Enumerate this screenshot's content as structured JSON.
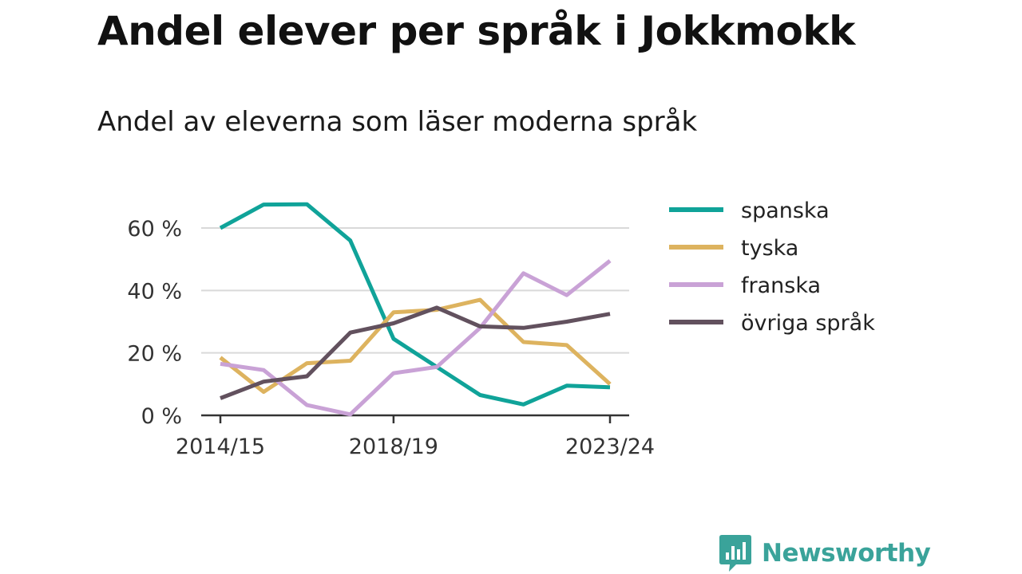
{
  "title": "Andel elever per språk i Jokkmokk",
  "subtitle": "Andel av eleverna som läser moderna språk",
  "brand": {
    "name": "Newsworthy",
    "color": "#3aa39a"
  },
  "chart_data": {
    "type": "line",
    "x_count": 10,
    "x_ticks": [
      {
        "index": 0,
        "label": "2014/15"
      },
      {
        "index": 4,
        "label": "2018/19"
      },
      {
        "index": 9,
        "label": "2023/24"
      }
    ],
    "ylim": [
      0,
      65
    ],
    "y_ticks": [
      {
        "value": 0,
        "label": "0 %"
      },
      {
        "value": 20,
        "label": "20 %"
      },
      {
        "value": 40,
        "label": "40 %"
      },
      {
        "value": 60,
        "label": "60 %"
      }
    ],
    "grid": true,
    "legend_position": "right",
    "series": [
      {
        "name": "spanska",
        "color": "#10a399",
        "values": [
          60,
          67.5,
          67.6,
          56,
          24.5,
          15.5,
          6.5,
          3.5,
          9.5,
          9
        ]
      },
      {
        "name": "tyska",
        "color": "#ddb35f",
        "values": [
          18.5,
          7.5,
          16.7,
          17.5,
          33,
          33.8,
          37,
          23.5,
          22.5,
          10
        ]
      },
      {
        "name": "franska",
        "color": "#c9a2d6",
        "values": [
          16.5,
          14.5,
          3.3,
          0.3,
          13.5,
          15.5,
          28,
          45.5,
          38.5,
          49.5
        ]
      },
      {
        "name": "övriga språk",
        "color": "#62515e",
        "values": [
          5.5,
          10.8,
          12.5,
          26.5,
          29.5,
          34.5,
          28.5,
          28,
          30,
          32.5
        ]
      }
    ]
  }
}
